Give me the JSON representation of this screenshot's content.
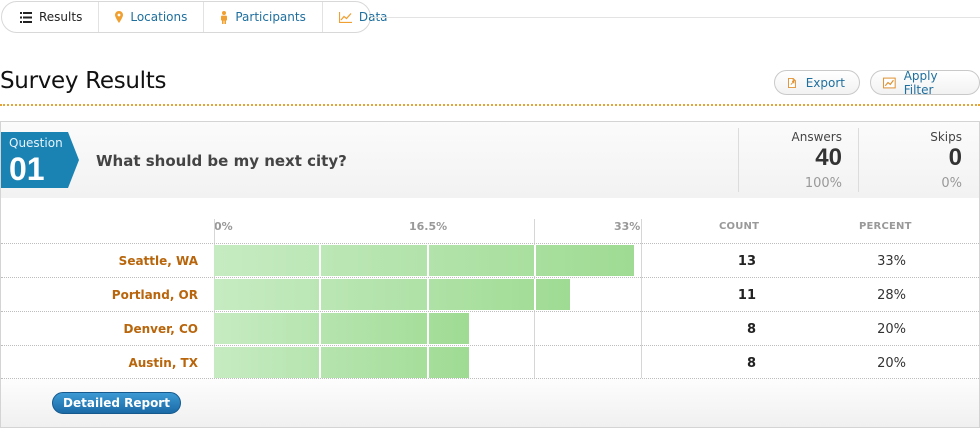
{
  "tabs": [
    {
      "label": "Results",
      "icon": "list-icon",
      "active": true
    },
    {
      "label": "Locations",
      "icon": "map-pin-icon",
      "active": false
    },
    {
      "label": "Participants",
      "icon": "person-icon",
      "active": false
    },
    {
      "label": "Data",
      "icon": "chart-icon",
      "active": false
    }
  ],
  "header": {
    "title": "Survey Results",
    "export_label": "Export",
    "filter_label": "Apply Filter"
  },
  "question": {
    "label": "Question",
    "number": "01",
    "text": "What should be my next city?",
    "answers_label": "Answers",
    "answers_value": "40",
    "answers_pct": "100%",
    "skips_label": "Skips",
    "skips_value": "0",
    "skips_pct": "0%"
  },
  "columns": {
    "count": "COUNT",
    "percent": "PERCENT"
  },
  "axis": {
    "ticks": [
      "0%",
      "16.5%",
      "33%"
    ],
    "max_fraction": 0.33
  },
  "rows": [
    {
      "city": "Seattle, WA",
      "count": "13",
      "percent": "33%",
      "fraction": 0.33
    },
    {
      "city": "Portland, OR",
      "count": "11",
      "percent": "28%",
      "fraction": 0.28
    },
    {
      "city": "Denver, CO",
      "count": "8",
      "percent": "20%",
      "fraction": 0.2
    },
    {
      "city": "Austin, TX",
      "count": "8",
      "percent": "20%",
      "fraction": 0.2
    }
  ],
  "footer": {
    "detail_label": "Detailed Report"
  },
  "colors": {
    "accent": "#1f7fb3",
    "city": "#b8650b",
    "bar": "#a6dd9b",
    "divider": "#e2a53a"
  }
}
